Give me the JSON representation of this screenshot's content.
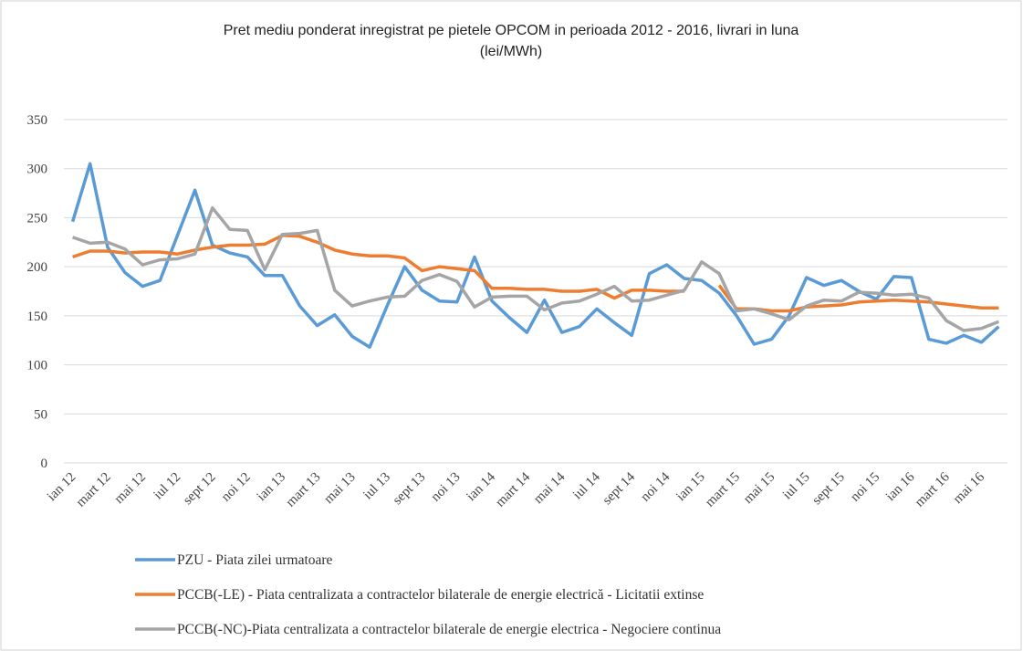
{
  "chart_data": {
    "type": "line",
    "title": "Pret mediu ponderat inregistrat pe pietele OPCOM in perioada 2012 - 2016, livrari in luna",
    "subtitle": "(lei/MWh)",
    "categories": [
      "ian 12",
      null,
      "mart 12",
      null,
      "mai 12",
      null,
      "iul 12",
      null,
      "sept 12",
      null,
      "noi 12",
      null,
      "ian 13",
      null,
      "mart 13",
      null,
      "mai 13",
      null,
      "iul 13",
      null,
      "sept 13",
      null,
      "noi 13",
      null,
      "ian 14",
      null,
      "mart 14",
      null,
      "mai 14",
      null,
      "iul 14",
      null,
      "sept 14",
      null,
      "noi 14",
      null,
      "ian 15",
      null,
      "mart 15",
      null,
      "mai 15",
      null,
      "iul 15",
      null,
      "sept 15",
      null,
      "noi 15",
      null,
      "ian 16",
      null,
      "mart 16",
      null,
      "mai 16",
      null
    ],
    "series": [
      {
        "name": "PZU - Piata zilei urmatoare",
        "color": "#5b9bd5",
        "values": [
          246,
          305,
          220,
          194,
          180,
          186,
          232,
          278,
          222,
          214,
          210,
          191,
          191,
          160,
          140,
          151,
          129,
          118,
          160,
          200,
          176,
          165,
          164,
          210,
          165,
          148,
          133,
          166,
          133,
          139,
          157,
          143,
          130,
          193,
          202,
          188,
          186,
          173,
          150,
          121,
          126,
          150,
          189,
          181,
          186,
          175,
          167,
          190,
          189,
          126,
          122,
          130,
          123,
          139
        ]
      },
      {
        "name": "PCCB(-LE) - Piata centralizata a contractelor bilaterale de energie electrică - Licitatii extinse",
        "color": "#ed7d31",
        "values": [
          210,
          216,
          216,
          214,
          215,
          215,
          213,
          217,
          220,
          222,
          222,
          223,
          232,
          231,
          225,
          217,
          213,
          211,
          211,
          209,
          196,
          200,
          198,
          196,
          178,
          178,
          177,
          177,
          175,
          175,
          177,
          168,
          176,
          176,
          175,
          175,
          null,
          181,
          157,
          157,
          155,
          155,
          159,
          160,
          161,
          164,
          165,
          166,
          165,
          164,
          162,
          160,
          158,
          158
        ]
      },
      {
        "name": "PCCB(-NC)-Piata centralizata a contractelor bilaterale de energie electrica - Negociere continua",
        "color": "#a5a5a5",
        "values": [
          230,
          224,
          225,
          218,
          202,
          207,
          208,
          213,
          260,
          238,
          237,
          197,
          233,
          234,
          237,
          176,
          160,
          165,
          169,
          170,
          186,
          192,
          185,
          159,
          169,
          170,
          170,
          156,
          163,
          165,
          172,
          180,
          165,
          166,
          171,
          176,
          205,
          193,
          155,
          157,
          152,
          146,
          160,
          166,
          165,
          174,
          173,
          171,
          172,
          168,
          145,
          135,
          137,
          144
        ]
      }
    ],
    "ylim": [
      0,
      350
    ],
    "yticks": [
      0,
      50,
      100,
      150,
      200,
      250,
      300,
      350
    ],
    "grid": true
  }
}
